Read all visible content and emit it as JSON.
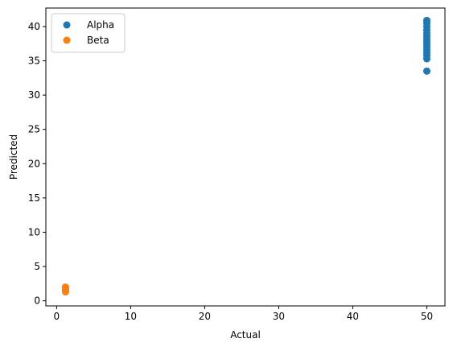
{
  "chart_data": {
    "type": "scatter",
    "xlabel": "Actual",
    "ylabel": "Predicted",
    "xlim": [
      -1.45,
      52.45
    ],
    "ylim": [
      -0.75,
      42.7
    ],
    "xticks": [
      0,
      10,
      20,
      30,
      40,
      50
    ],
    "yticks": [
      0,
      5,
      10,
      15,
      20,
      25,
      30,
      35,
      40
    ],
    "grid": false,
    "legend_position": "top-left",
    "series": [
      {
        "name": "Alpha",
        "color": "#1f77b4",
        "points": [
          {
            "x": 50,
            "y": 33.5
          },
          {
            "x": 50,
            "y": 35.3
          },
          {
            "x": 50,
            "y": 35.8
          },
          {
            "x": 50,
            "y": 36.2
          },
          {
            "x": 50,
            "y": 36.6
          },
          {
            "x": 50,
            "y": 37.0
          },
          {
            "x": 50,
            "y": 37.4
          },
          {
            "x": 50,
            "y": 37.8
          },
          {
            "x": 50,
            "y": 38.2
          },
          {
            "x": 50,
            "y": 38.6
          },
          {
            "x": 50,
            "y": 39.0
          },
          {
            "x": 50,
            "y": 39.5
          },
          {
            "x": 50,
            "y": 40.0
          },
          {
            "x": 50,
            "y": 40.5
          },
          {
            "x": 50,
            "y": 40.9
          }
        ]
      },
      {
        "name": "Beta",
        "color": "#ff7f0e",
        "points": [
          {
            "x": 1.2,
            "y": 1.3
          },
          {
            "x": 1.2,
            "y": 1.45
          },
          {
            "x": 1.2,
            "y": 1.6
          },
          {
            "x": 1.2,
            "y": 1.7
          },
          {
            "x": 1.2,
            "y": 1.8
          },
          {
            "x": 1.2,
            "y": 1.9
          },
          {
            "x": 1.2,
            "y": 2.0
          }
        ]
      }
    ]
  }
}
